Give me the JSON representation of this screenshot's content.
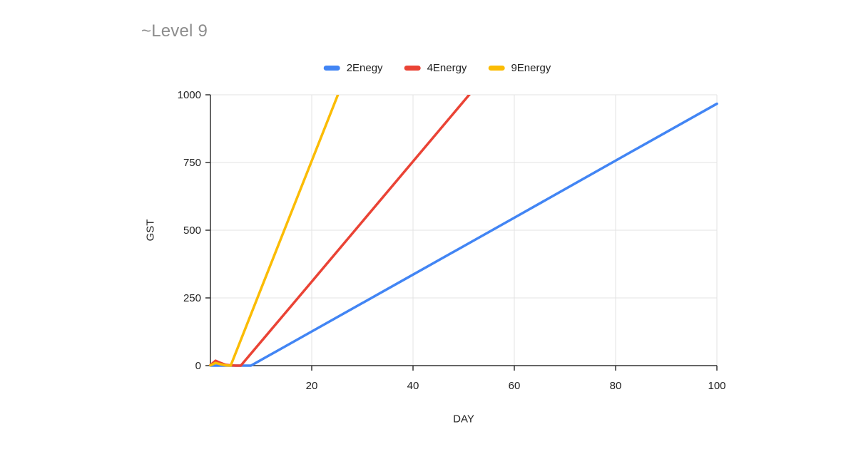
{
  "page": {
    "background_color": "#ffffff"
  },
  "chart_data": {
    "type": "line",
    "title": "~Level 9",
    "xlabel": "DAY",
    "ylabel": "GST",
    "xlim": [
      0,
      100
    ],
    "ylim": [
      0,
      1000
    ],
    "x_ticks": [
      20,
      40,
      60,
      80,
      100
    ],
    "y_ticks": [
      0,
      250,
      500,
      750,
      1000
    ],
    "grid": true,
    "legend_position": "top-center",
    "style": {
      "title_color": "#8d8d8d",
      "tick_label_color": "#222222",
      "axis_color": "#333333",
      "grid_color": "#e3e3e3"
    },
    "series": [
      {
        "name": "2Enegy",
        "color": "#4285F4",
        "comment": "flat at 0 until ~day 8, then linear ~10.5 GST/day up to ~967 at day 100",
        "points": [
          [
            0,
            0
          ],
          [
            2,
            0
          ],
          [
            4,
            0
          ],
          [
            6,
            0
          ],
          [
            8,
            0
          ],
          [
            20,
            126
          ],
          [
            40,
            336
          ],
          [
            60,
            546
          ],
          [
            80,
            757
          ],
          [
            100,
            967
          ]
        ]
      },
      {
        "name": "4Energy",
        "color": "#EA4335",
        "comment": "small bump ~18 GST near day 1, back to 0 by day 5, then linear ~22 GST/day, reaches 1000 near day 51",
        "points": [
          [
            0,
            2
          ],
          [
            1,
            18
          ],
          [
            2,
            10
          ],
          [
            3,
            3
          ],
          [
            4,
            1
          ],
          [
            5,
            0
          ],
          [
            6,
            0
          ],
          [
            20,
            310
          ],
          [
            30,
            532
          ],
          [
            40,
            754
          ],
          [
            51,
            998
          ],
          [
            52,
            1020
          ]
        ]
      },
      {
        "name": "9Energy",
        "color": "#FBBC04",
        "comment": "small bump ~10 GST near day 1, back to 0 by day 4, then linear ~47 GST/day, reaches 1000 near day 25.5",
        "points": [
          [
            0,
            1
          ],
          [
            1,
            10
          ],
          [
            2,
            5
          ],
          [
            3,
            1
          ],
          [
            4,
            0
          ],
          [
            10,
            284
          ],
          [
            15,
            520
          ],
          [
            20,
            756
          ],
          [
            25,
            992
          ],
          [
            26,
            1040
          ]
        ]
      }
    ]
  }
}
